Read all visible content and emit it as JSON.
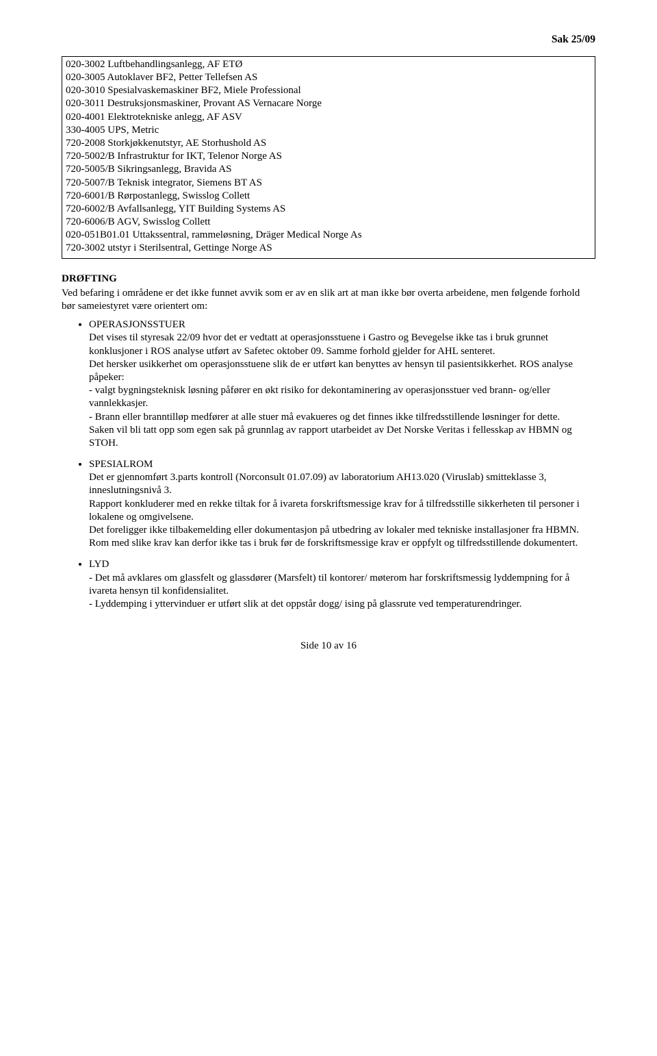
{
  "header": {
    "case_no": "Sak 25/09"
  },
  "box": {
    "lines": [
      "020-3002 Luftbehandlingsanlegg, AF ETØ",
      "020-3005 Autoklaver BF2, Petter Tellefsen AS",
      "020-3010 Spesialvaskemaskiner BF2, Miele Professional",
      "020-3011 Destruksjonsmaskiner, Provant AS Vernacare Norge",
      "020-4001 Elektrotekniske anlegg, AF ASV",
      "330-4005 UPS, Metric",
      "720-2008 Storkjøkkenutstyr, AE Storhushold AS",
      "720-5002/B Infrastruktur for IKT, Telenor Norge AS",
      "720-5005/B Sikringsanlegg, Bravida AS",
      "720-5007/B Teknisk integrator, Siemens BT AS",
      "720-6001/B Rørpostanlegg, Swisslog Collett",
      "720-6002/B Avfallsanlegg, YIT Building Systems AS",
      "720-6006/B AGV, Swisslog Collett",
      "020-051B01.01 Uttakssentral, rammeløsning, Dräger Medical Norge As",
      "720-3002 utstyr i Sterilsentral, Gettinge Norge AS"
    ]
  },
  "discussion": {
    "title": "DRØFTING",
    "intro": "Ved befaring i områdene er det ikke funnet avvik som er av en slik art at man ikke bør overta arbeidene, men følgende forhold bør sameiestyret være orientert om:",
    "items": [
      {
        "title": "OPERASJONSSTUER",
        "paragraphs": [
          "Det vises til styresak 22/09 hvor det er vedtatt at operasjonsstuene i Gastro og Bevegelse ikke tas i bruk grunnet konklusjoner i ROS analyse utført av Safetec oktober 09. Samme forhold gjelder for AHL senteret.",
          "Det hersker usikkerhet om operasjonsstuene slik de er utført kan benyttes av hensyn til pasientsikkerhet. ROS analyse påpeker:",
          "- valgt bygningsteknisk løsning påfører en økt risiko for dekontaminering av operasjonsstuer ved brann- og/eller vannlekkasjer.",
          "- Brann eller branntilløp medfører at alle stuer må evakueres og det finnes ikke tilfredsstillende løsninger for dette.",
          "Saken vil bli tatt opp som egen sak på grunnlag av rapport utarbeidet av Det Norske Veritas i fellesskap av HBMN og STOH."
        ]
      },
      {
        "title": "SPESIALROM",
        "paragraphs": [
          "Det er gjennomført 3.parts kontroll (Norconsult 01.07.09) av laboratorium AH13.020 (Viruslab) smitteklasse 3, inneslutningsnivå 3.",
          "Rapport konkluderer med en rekke tiltak for å ivareta forskriftsmessige krav for å tilfredsstille sikkerheten til personer i lokalene og omgivelsene.",
          "Det foreligger ikke tilbakemelding eller dokumentasjon på utbedring av lokaler med tekniske installasjoner fra HBMN.",
          "Rom med slike krav kan derfor ikke tas i bruk før de forskriftsmessige krav er oppfylt og tilfredsstillende dokumentert."
        ]
      },
      {
        "title": "LYD",
        "paragraphs": [
          "- Det må avklares om glassfelt og glassdører (Marsfelt) til kontorer/ møterom har forskriftsmessig lyddempning for å ivareta hensyn til konfidensialitet.",
          "- Lyddemping i yttervinduer er utført slik at det oppstår dogg/ ising på glassrute ved temperaturendringer."
        ]
      }
    ]
  },
  "footer": {
    "page": "Side 10 av 16"
  }
}
